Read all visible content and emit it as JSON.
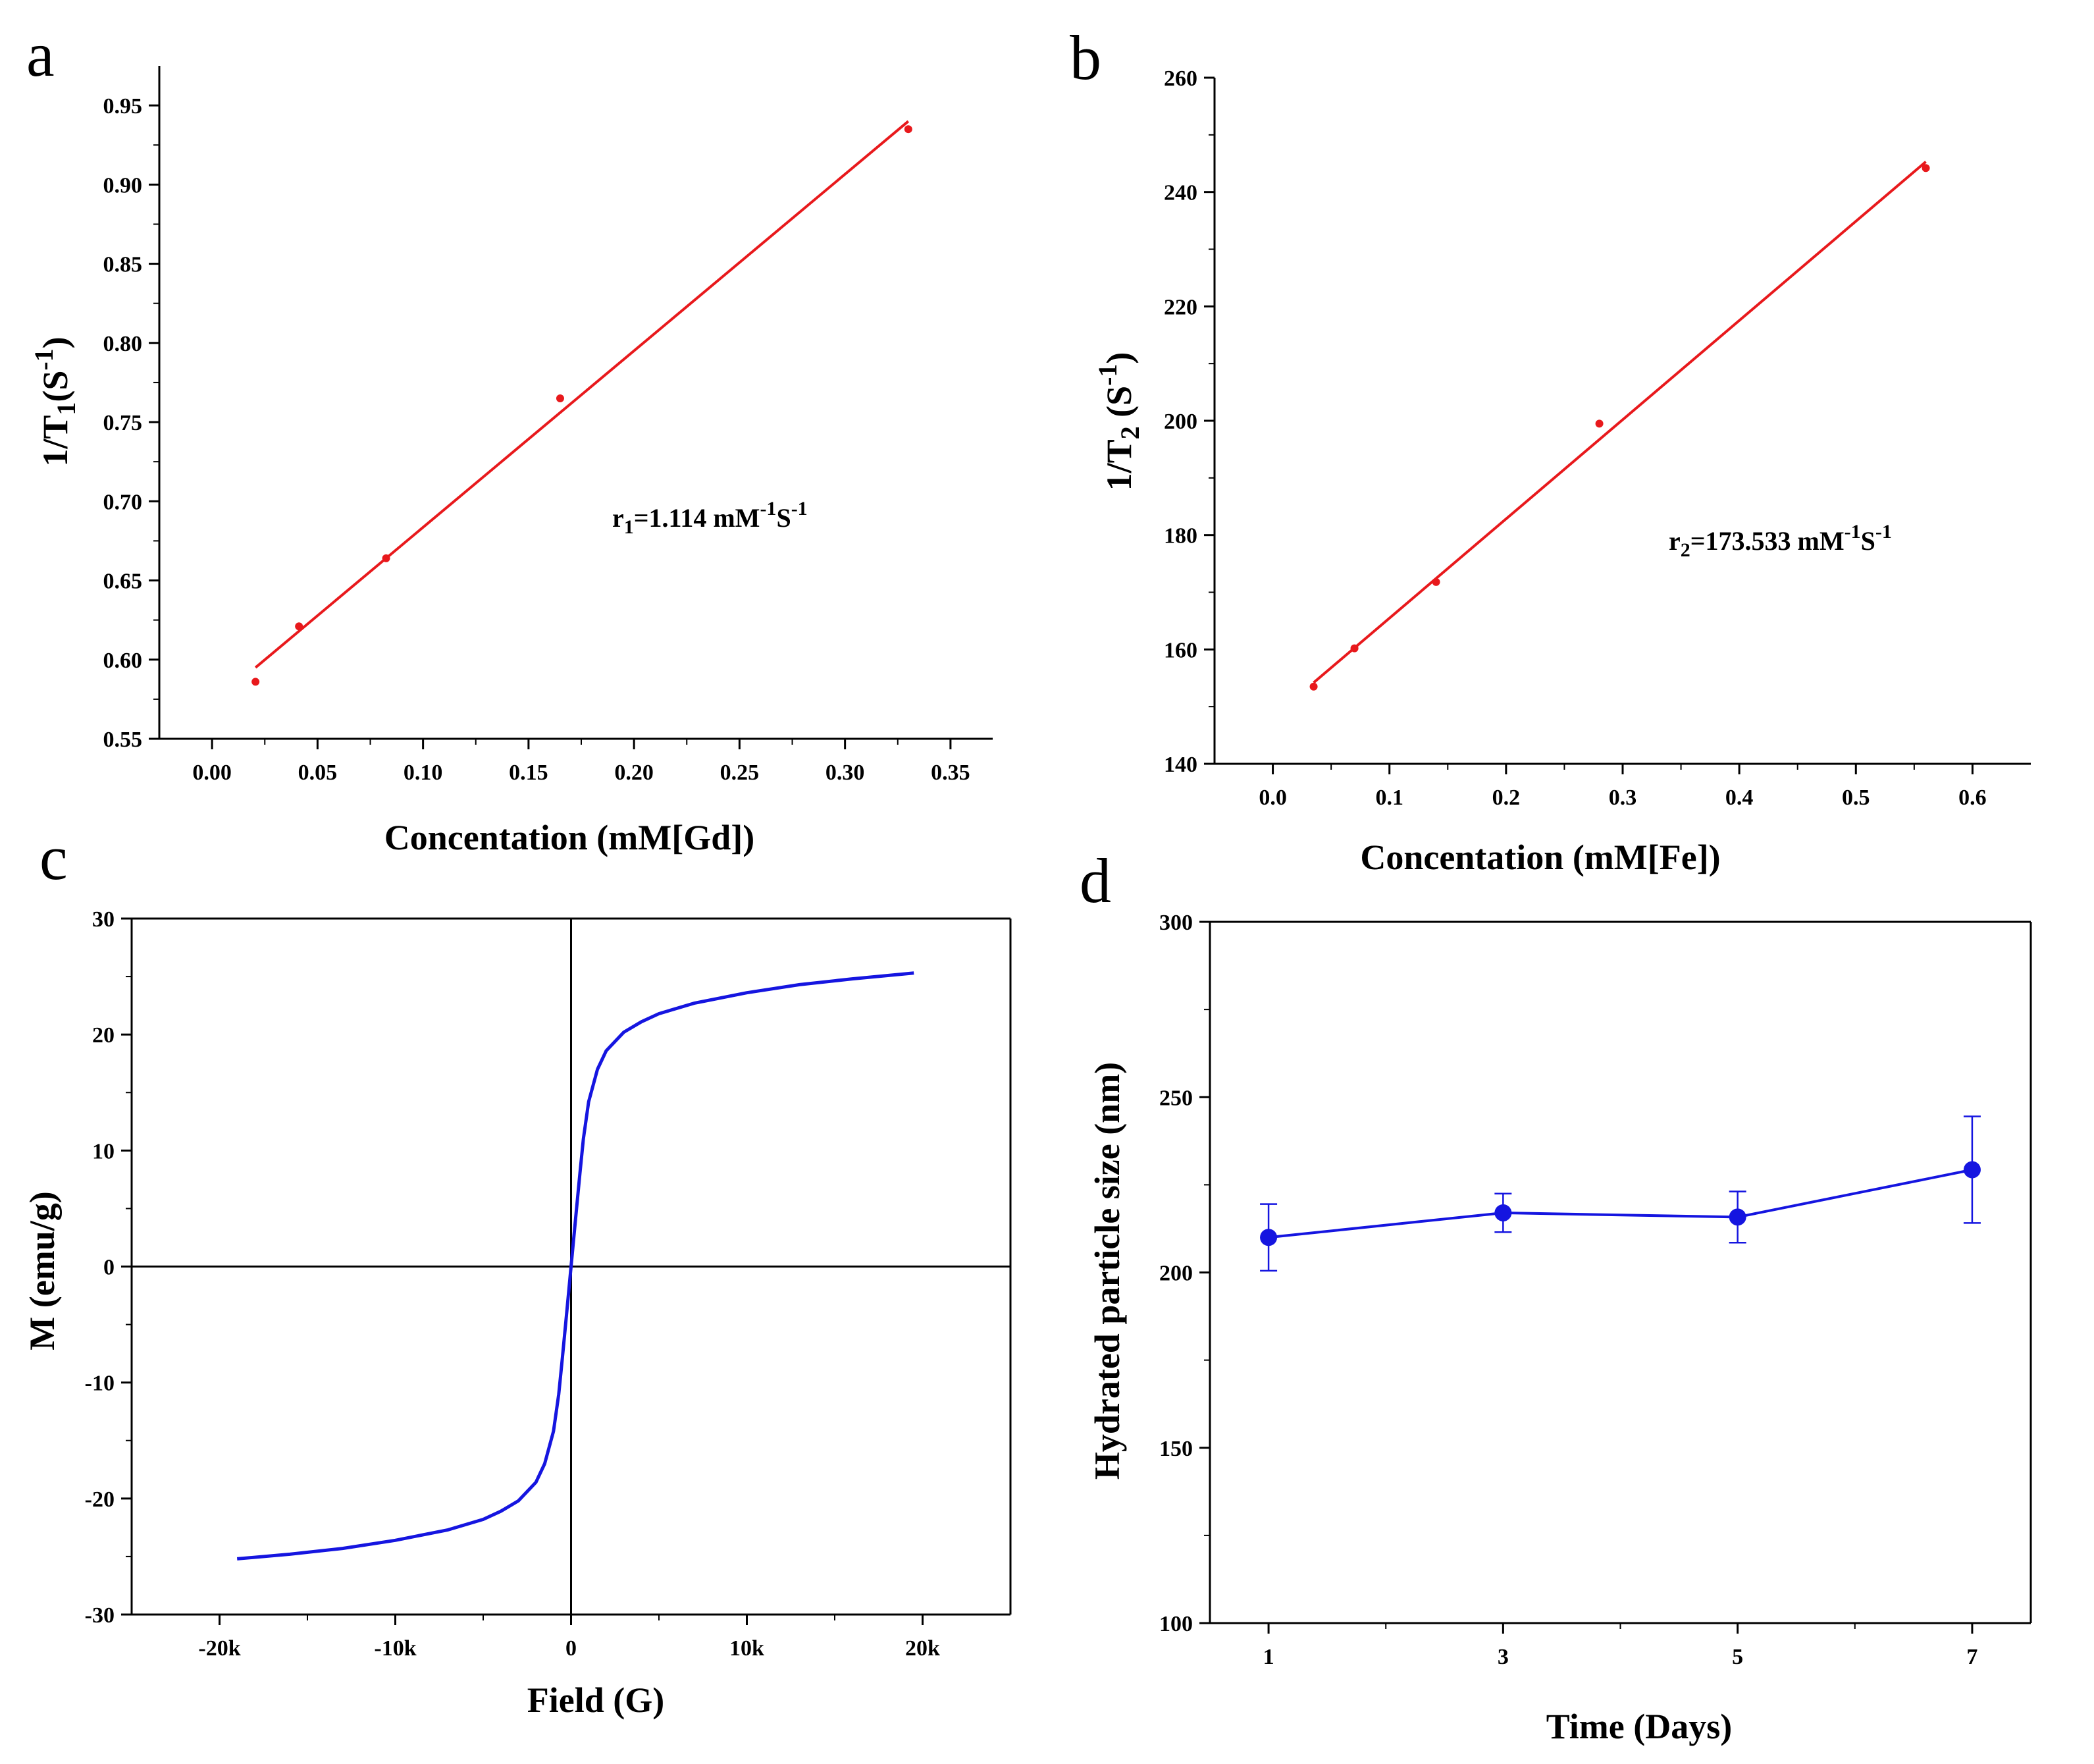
{
  "panels": {
    "a": {
      "letter": "a"
    },
    "b": {
      "letter": "b"
    },
    "c": {
      "letter": "c"
    },
    "d": {
      "letter": "d"
    }
  },
  "chart_data": [
    {
      "id": "a",
      "type": "scatter",
      "title": "",
      "xlabel": "Concentation (mM[Gd])",
      "ylabel_parts": {
        "base": "1/T",
        "sub": "1",
        "rest": "(S",
        "sup": "-1",
        "end": ")"
      },
      "xlim": [
        -0.025,
        0.37
      ],
      "ylim": [
        0.55,
        0.975
      ],
      "xticks": [
        0.0,
        0.05,
        0.1,
        0.15,
        0.2,
        0.25,
        0.3,
        0.35
      ],
      "xtick_labels": [
        "0.00",
        "0.05",
        "0.10",
        "0.15",
        "0.20",
        "0.25",
        "0.30",
        "0.35"
      ],
      "yticks": [
        0.55,
        0.6,
        0.65,
        0.7,
        0.75,
        0.8,
        0.85,
        0.9,
        0.95
      ],
      "ytick_labels": [
        "0.55",
        "0.60",
        "0.65",
        "0.70",
        "0.75",
        "0.80",
        "0.85",
        "0.90",
        "0.95"
      ],
      "x": [
        0.0206,
        0.0412,
        0.0825,
        0.165,
        0.33
      ],
      "y": [
        0.586,
        0.621,
        0.664,
        0.765,
        0.935
      ],
      "fit_line": {
        "x": [
          0.0206,
          0.33
        ],
        "y": [
          0.595,
          0.94
        ]
      },
      "color": "#e8191c",
      "annotation": {
        "pre": "r",
        "sub": "1",
        "mid": "=1.114 mM",
        "sup1": "-1",
        "s": "S",
        "sup2": "-1"
      },
      "annotation_anchor": {
        "x": 0.19,
        "y": 0.705
      }
    },
    {
      "id": "b",
      "type": "scatter",
      "title": "",
      "xlabel": "Concentation (mM[Fe])",
      "ylabel_parts": {
        "base": "1/T",
        "sub": "2",
        "rest": " (S",
        "sup": "-1",
        "end": ")"
      },
      "xlim": [
        -0.05,
        0.65
      ],
      "ylim": [
        140,
        260
      ],
      "xticks": [
        0.0,
        0.1,
        0.2,
        0.3,
        0.4,
        0.5,
        0.6
      ],
      "xtick_labels": [
        "0.0",
        "0.1",
        "0.2",
        "0.3",
        "0.4",
        "0.5",
        "0.6"
      ],
      "yticks": [
        140,
        160,
        180,
        200,
        220,
        240,
        260
      ],
      "ytick_labels": [
        "140",
        "160",
        "180",
        "200",
        "220",
        "240",
        "260"
      ],
      "x": [
        0.035,
        0.07,
        0.14,
        0.28,
        0.56
      ],
      "y": [
        153.5,
        160.2,
        171.8,
        199.5,
        244.2
      ],
      "fit_line": {
        "x": [
          0.035,
          0.56
        ],
        "y": [
          154.2,
          245.3
        ]
      },
      "color": "#e8191c",
      "annotation": {
        "pre": "r",
        "sub": "2",
        "mid": "=173.533 mM",
        "sup1": "-1",
        "s": "S",
        "sup2": "-1"
      },
      "annotation_anchor": {
        "x": 0.315,
        "y": 178
      }
    },
    {
      "id": "c",
      "type": "line",
      "title": "",
      "xlabel": "Field (G)",
      "ylabel": "M (emu/g)",
      "xlim": [
        -25000,
        25000
      ],
      "ylim": [
        -30,
        30
      ],
      "xticks": [
        -20000,
        -10000,
        0,
        10000,
        20000
      ],
      "xtick_labels": [
        "-20k",
        "-10k",
        "0",
        "10k",
        "20k"
      ],
      "yticks": [
        -30,
        -20,
        -10,
        0,
        10,
        20,
        30
      ],
      "ytick_labels": [
        "-30",
        "-20",
        "-10",
        "0",
        "10",
        "20",
        "30"
      ],
      "x": [
        -19000,
        -16000,
        -13000,
        -10000,
        -7000,
        -5000,
        -4000,
        -3000,
        -2000,
        -1500,
        -1000,
        -700,
        -500,
        -300,
        -150,
        0,
        150,
        300,
        500,
        700,
        1000,
        1500,
        2000,
        3000,
        4000,
        5000,
        7000,
        10000,
        13000,
        16000,
        19500
      ],
      "y": [
        -25.2,
        -24.8,
        -24.3,
        -23.6,
        -22.7,
        -21.8,
        -21.1,
        -20.2,
        -18.6,
        -17.0,
        -14.2,
        -11.0,
        -8.0,
        -4.8,
        -2.4,
        0.0,
        2.4,
        4.8,
        8.0,
        11.0,
        14.2,
        17.0,
        18.6,
        20.2,
        21.1,
        21.8,
        22.7,
        23.6,
        24.3,
        24.8,
        25.3
      ],
      "reference_lines": {
        "x0": 0,
        "y0": 0
      },
      "color": "#1515e0"
    },
    {
      "id": "d",
      "type": "line",
      "title": "",
      "xlabel": "Time (Days)",
      "ylabel": "Hydrated particle size (nm)",
      "xlim": [
        0.5,
        7.5
      ],
      "ylim": [
        100,
        300
      ],
      "xticks": [
        1,
        3,
        5,
        7
      ],
      "xtick_labels": [
        "1",
        "3",
        "5",
        "7"
      ],
      "minor_xticks": [
        2,
        4,
        6
      ],
      "yticks": [
        100,
        150,
        200,
        250,
        300
      ],
      "ytick_labels": [
        "100",
        "150",
        "200",
        "250",
        "300"
      ],
      "x": [
        1,
        3,
        5,
        7
      ],
      "y": [
        210.0,
        217.0,
        215.8,
        229.3
      ],
      "error": [
        9.5,
        5.5,
        7.3,
        15.2
      ],
      "color": "#1515e0"
    }
  ]
}
